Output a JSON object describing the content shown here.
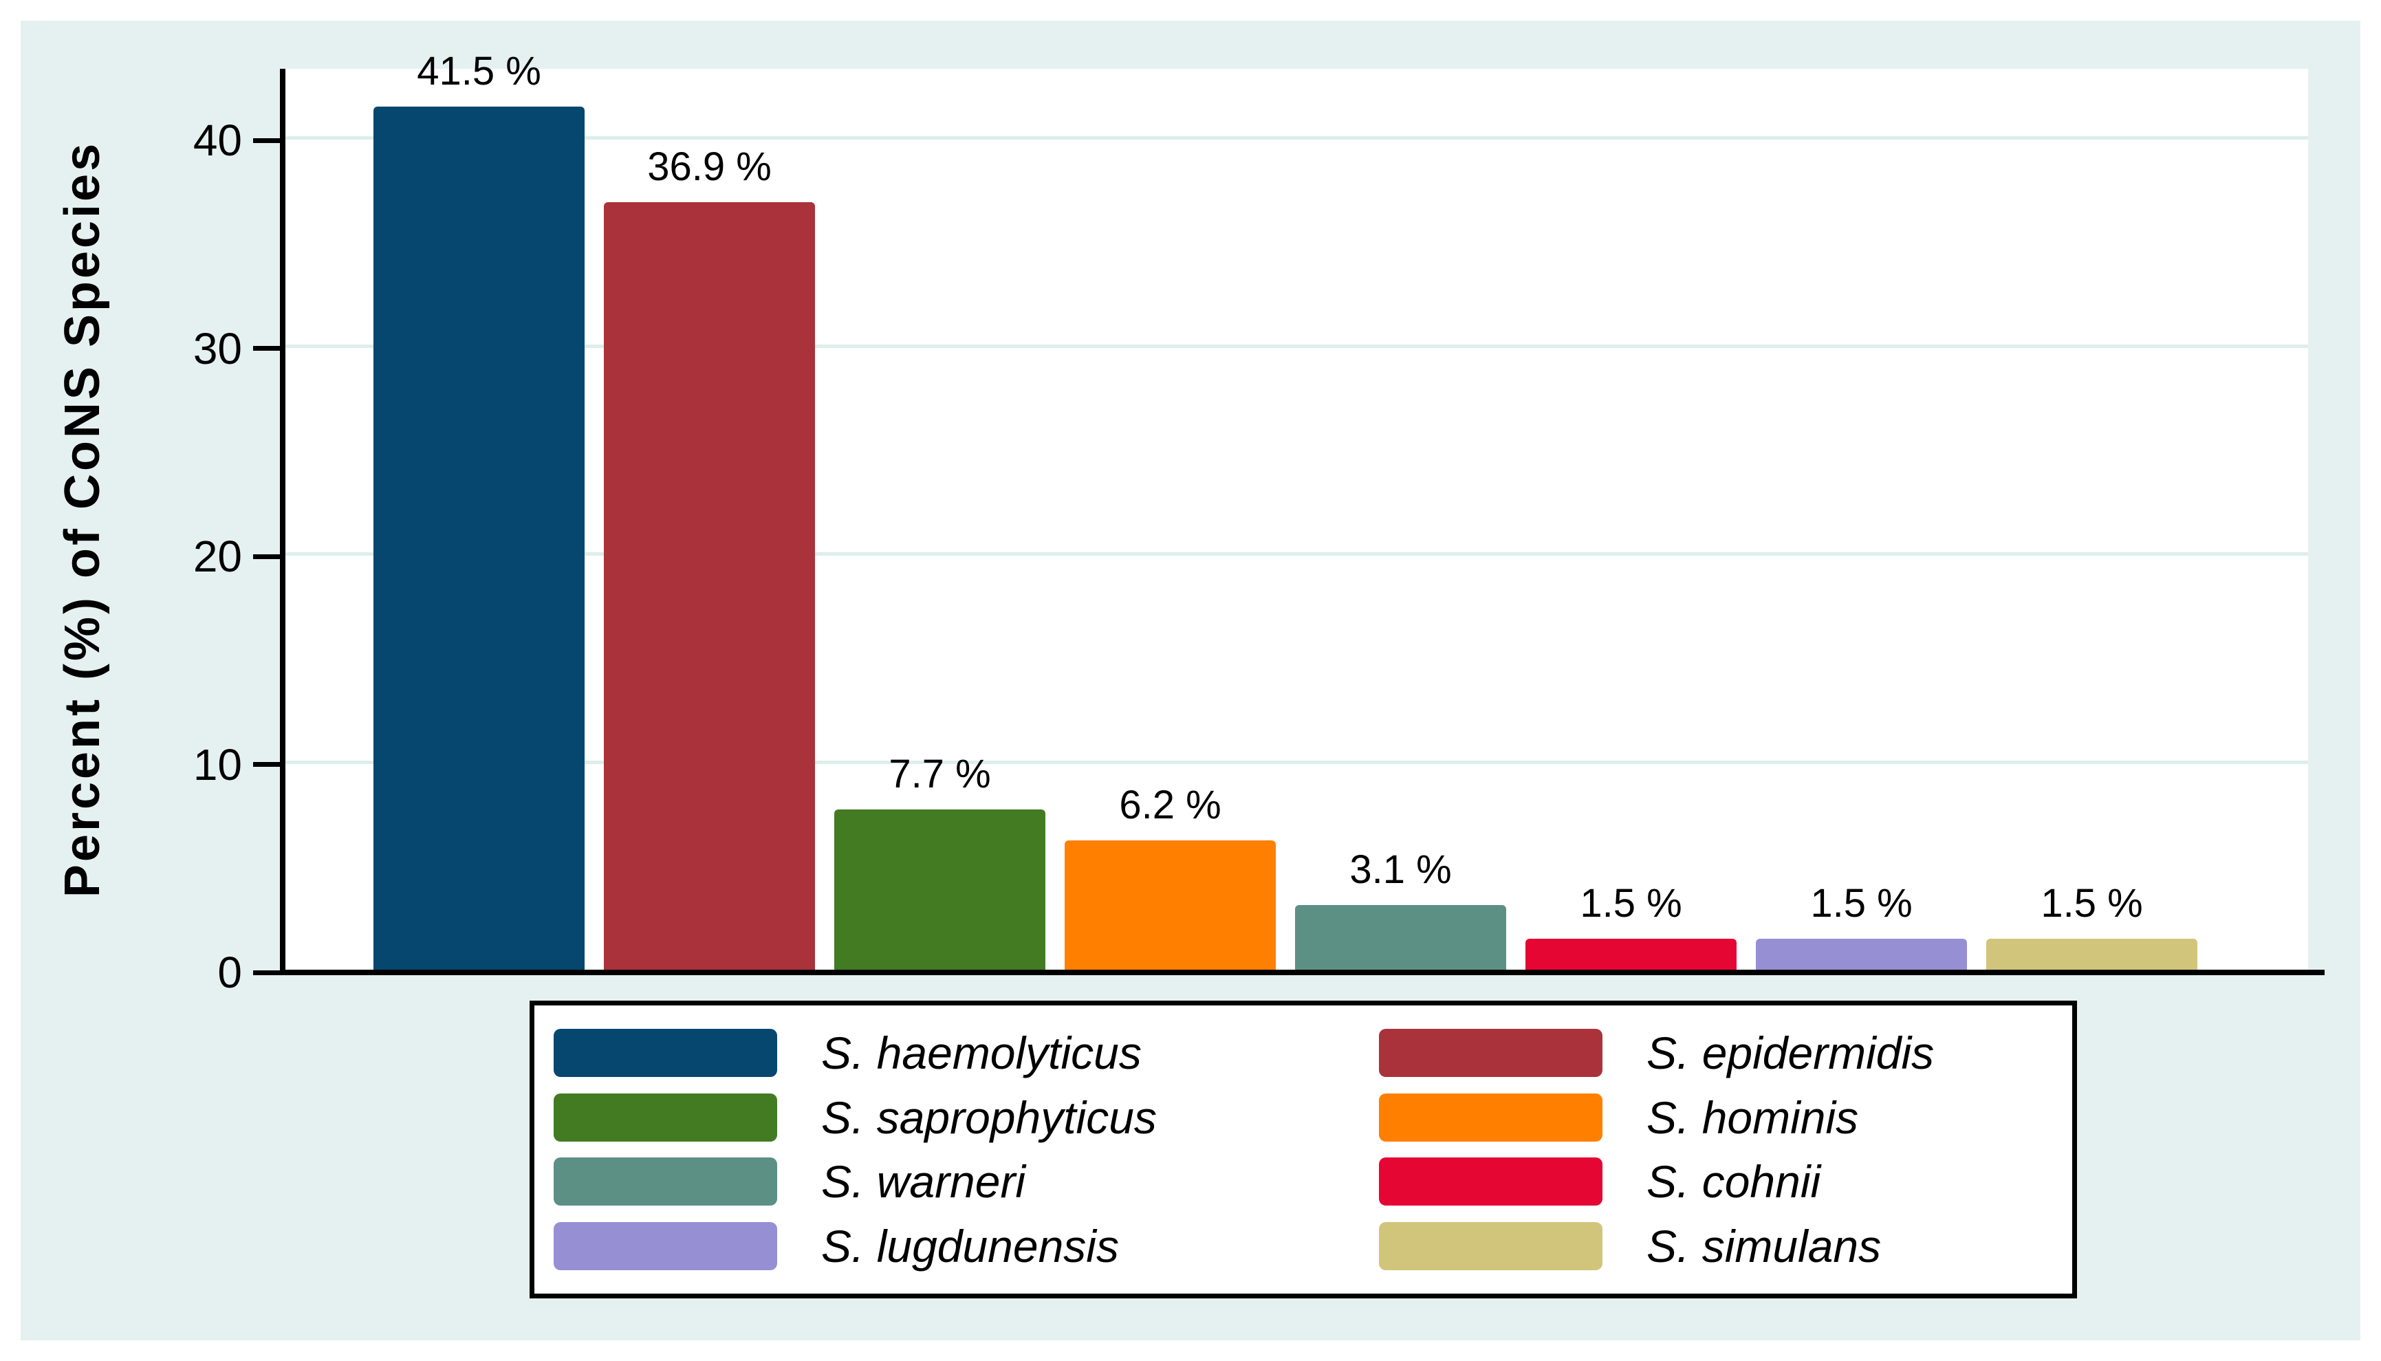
{
  "chart_data": {
    "type": "bar",
    "title": "",
    "xlabel": "",
    "ylabel": "Percent (%) of CoNS Species",
    "categories": [
      "S. haemolyticus",
      "S. epidermidis",
      "S. saprophyticus",
      "S. hominis",
      "S. warneri",
      "S. cohnii",
      "S. lugdunensis",
      "S. simulans"
    ],
    "values": [
      41.5,
      36.9,
      7.7,
      6.2,
      3.1,
      1.5,
      1.5,
      1.5
    ],
    "value_labels": [
      "41.5 %",
      "36.9 %",
      "7.7 %",
      "6.2 %",
      "3.1 %",
      "1.5 %",
      "1.5 %",
      "1.5 %"
    ],
    "bar_colors": [
      "#05476f",
      "#aa323a",
      "#437b22",
      "#ff8000",
      "#5d9085",
      "#e50634",
      "#968fd4",
      "#d1c57b"
    ],
    "yticks": [
      0,
      10,
      20,
      30,
      40
    ],
    "ylim": [
      0,
      43.3
    ],
    "grid": true,
    "legend_position": "bottom",
    "legend_columns": 2,
    "legend_items": [
      {
        "label": "S. haemolyticus",
        "color": "#05476f"
      },
      {
        "label": "S. epidermidis",
        "color": "#aa323a"
      },
      {
        "label": "S. saprophyticus",
        "color": "#437b22"
      },
      {
        "label": "S. hominis",
        "color": "#ff8000"
      },
      {
        "label": "S. warneri",
        "color": "#5d9085"
      },
      {
        "label": "S. cohnii",
        "color": "#e50634"
      },
      {
        "label": "S. lugdunensis",
        "color": "#968fd4"
      },
      {
        "label": "S. simulans",
        "color": "#d1c57b"
      }
    ]
  },
  "style_colors": {
    "canvas": "#ffffff",
    "panel_background": "#e5f1f0",
    "plot_background": "#ffffff",
    "gridline": "#ddeeec",
    "axis": "#000000",
    "text": "#000000",
    "legend_background": "#ffffff",
    "legend_border": "#000000"
  }
}
